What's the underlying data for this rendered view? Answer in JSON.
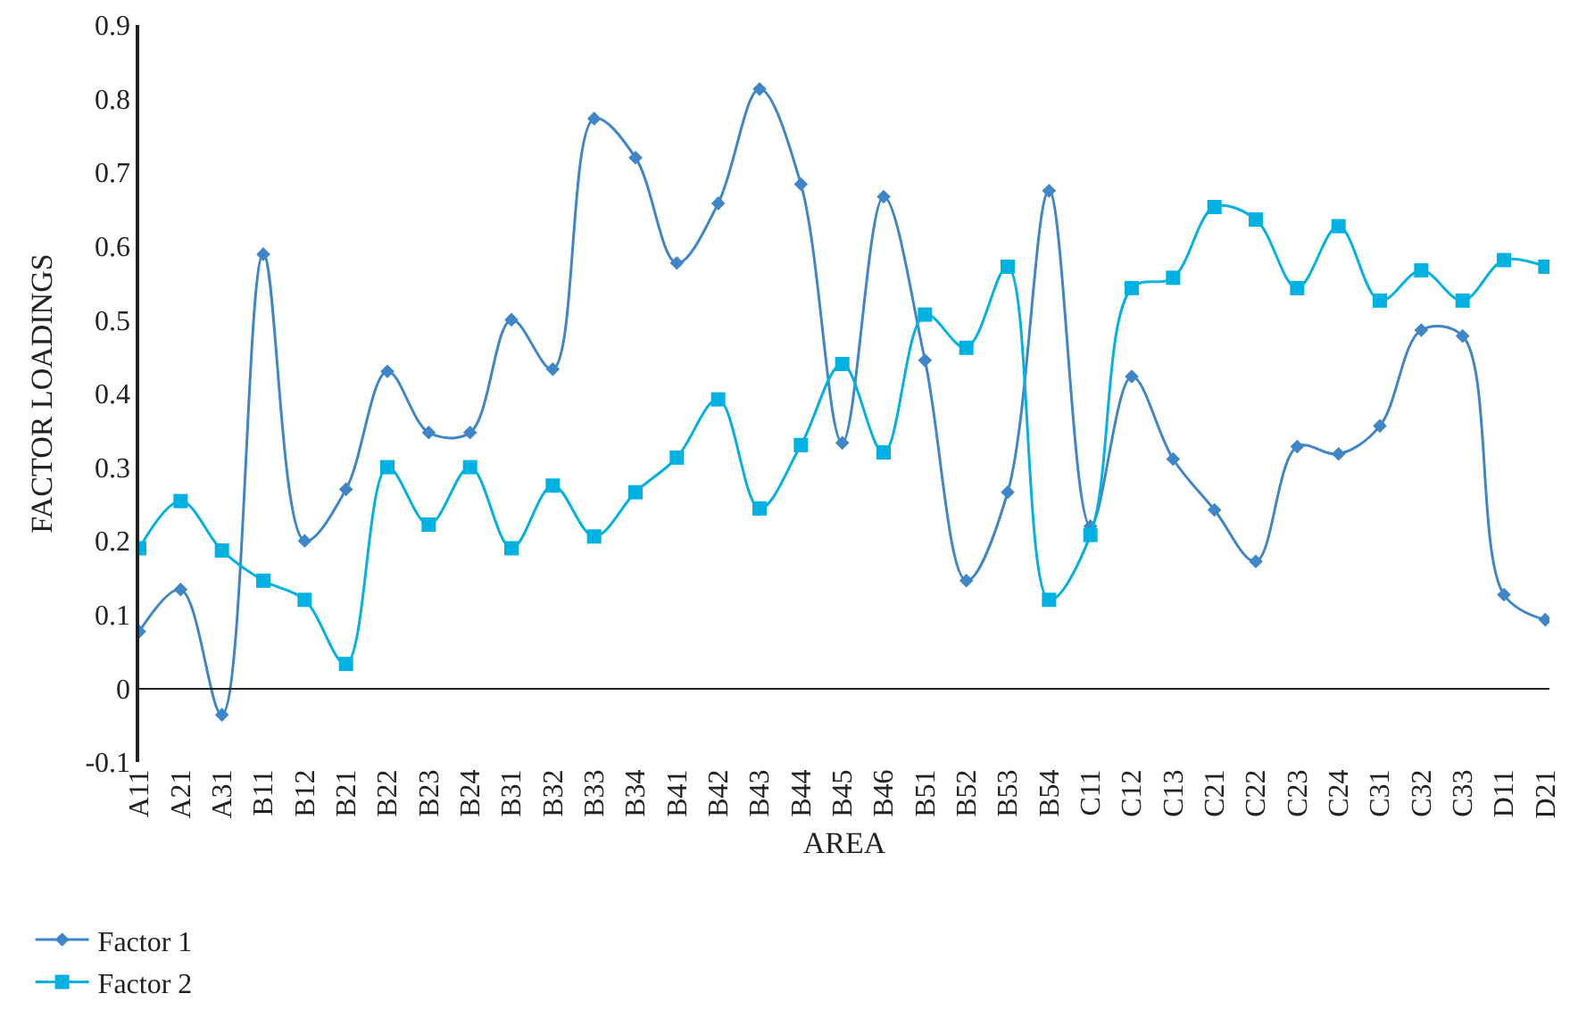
{
  "chart_data": {
    "type": "line",
    "xlabel": "AREA",
    "ylabel": "FACTOR LOADINGS",
    "categories": [
      "A11",
      "A21",
      "A31",
      "B11",
      "B12",
      "B21",
      "B22",
      "B23",
      "B24",
      "B31",
      "B32",
      "B33",
      "B34",
      "B41",
      "B42",
      "B43",
      "B44",
      "B45",
      "B46",
      "B51",
      "B52",
      "B53",
      "B54",
      "C11",
      "C12",
      "C13",
      "C21",
      "C22",
      "C23",
      "C24",
      "C31",
      "C32",
      "C33",
      "D11",
      "D21"
    ],
    "series": [
      {
        "name": "Factor 1",
        "color": "#3f86c8",
        "marker": "diamond",
        "values": [
          0.077,
          0.134,
          -0.036,
          0.589,
          0.2,
          0.27,
          0.43,
          0.347,
          0.347,
          0.5,
          0.433,
          0.773,
          0.72,
          0.577,
          0.658,
          0.813,
          0.684,
          0.333,
          0.667,
          0.445,
          0.146,
          0.266,
          0.675,
          0.22,
          0.423,
          0.311,
          0.242,
          0.172,
          0.328,
          0.318,
          0.356,
          0.486,
          0.478,
          0.127,
          0.093
        ]
      },
      {
        "name": "Factor 2",
        "color": "#00b2e2",
        "marker": "square",
        "values": [
          0.19,
          0.254,
          0.187,
          0.146,
          0.12,
          0.033,
          0.3,
          0.222,
          0.3,
          0.19,
          0.275,
          0.206,
          0.266,
          0.313,
          0.392,
          0.244,
          0.33,
          0.44,
          0.32,
          0.507,
          0.462,
          0.572,
          0.12,
          0.208,
          0.543,
          0.557,
          0.653,
          0.636,
          0.543,
          0.627,
          0.526,
          0.567,
          0.526,
          0.581,
          0.572
        ]
      }
    ],
    "ylim": [
      -0.1,
      0.9
    ],
    "yticks": [
      -0.1,
      0,
      0.1,
      0.2,
      0.3,
      0.4,
      0.5,
      0.6,
      0.7,
      0.8,
      0.9
    ],
    "legend": "bottom left",
    "line_style": "solid"
  }
}
